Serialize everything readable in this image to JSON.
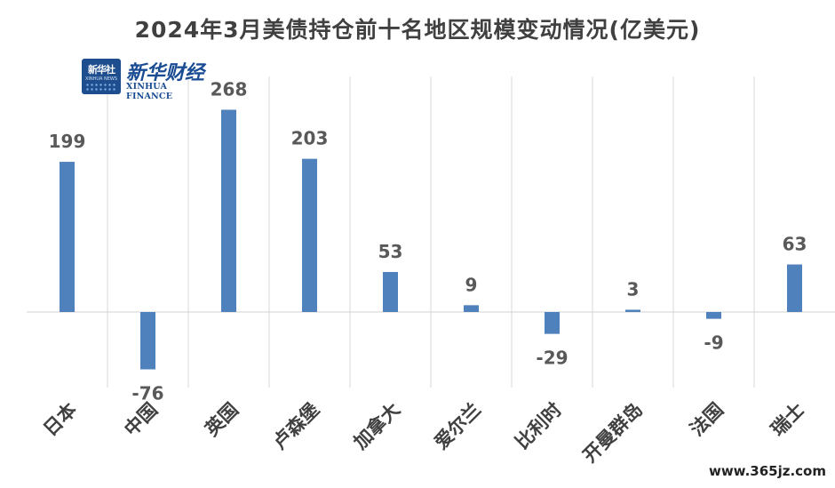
{
  "chart_data": {
    "type": "bar",
    "title": "2024年3月美债持仓前十名地区规模变动情况(亿美元)",
    "categories": [
      "日本",
      "中国",
      "英国",
      "卢森堡",
      "加拿大",
      "爱尔兰",
      "比利时",
      "开曼群岛",
      "法国",
      "瑞士"
    ],
    "values": [
      199,
      -76,
      268,
      203,
      53,
      9,
      -29,
      3,
      -9,
      63
    ],
    "ylim": [
      -100,
      310
    ],
    "bar_color": "#4f81bd",
    "grid": "vertical-only",
    "legend": "none"
  },
  "logo": {
    "badge_text": "新华社",
    "badge_sub": "XINHUA NEWS",
    "brand_cn": "新华财经",
    "brand_en": "XINHUA FINANCE"
  },
  "watermark": "www.365jz.com"
}
